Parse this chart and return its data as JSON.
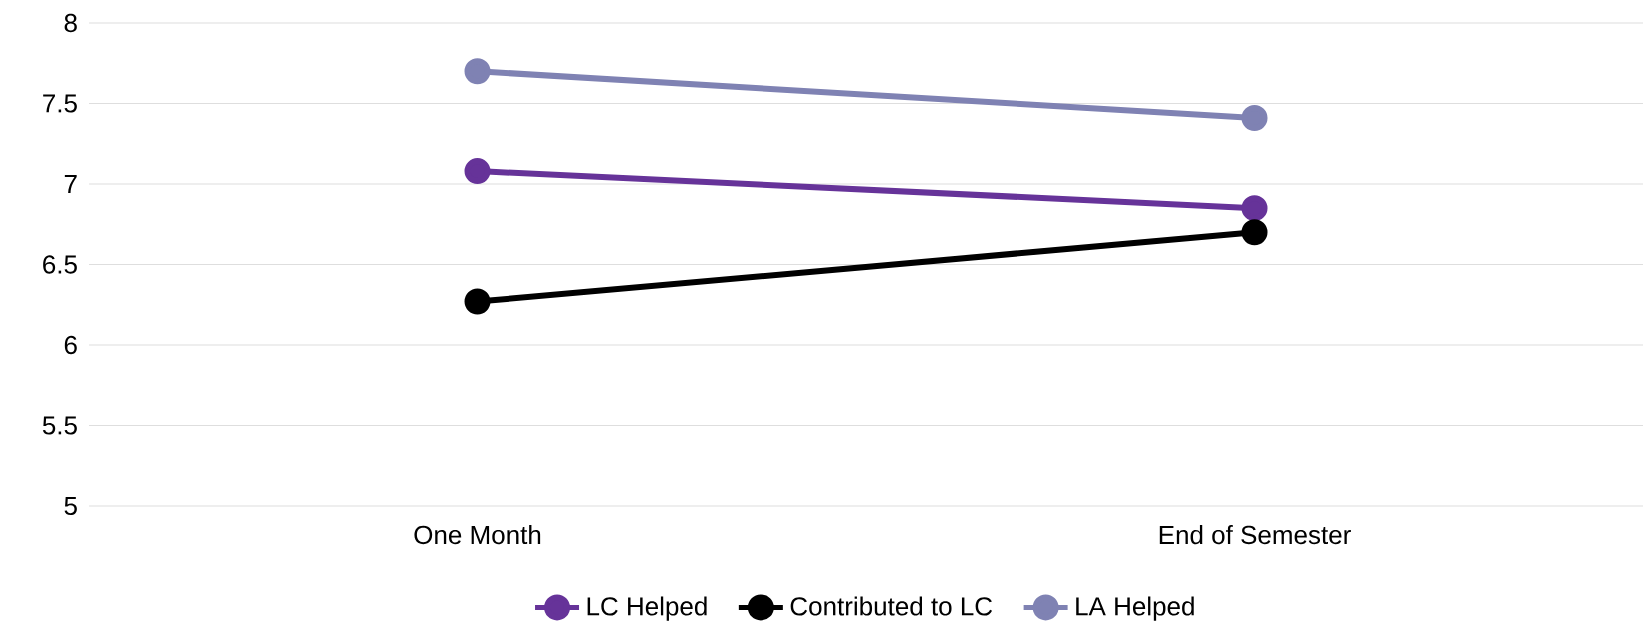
{
  "chart_data": {
    "type": "line",
    "categories": [
      "One Month",
      "End of Semester"
    ],
    "series": [
      {
        "name": "LC Helped",
        "color": "#663399",
        "values": [
          7.08,
          6.85
        ]
      },
      {
        "name": "Contributed to LC",
        "color": "#000000",
        "values": [
          6.27,
          6.7
        ]
      },
      {
        "name": "LA Helped",
        "color": "#7f82b3",
        "values": [
          7.7,
          7.41
        ]
      }
    ],
    "ylim": [
      5,
      8
    ],
    "yticks": [
      5,
      5.5,
      6,
      6.5,
      7,
      7.5,
      8
    ],
    "grid": "y",
    "legend": "bottom",
    "marker": "circle"
  }
}
